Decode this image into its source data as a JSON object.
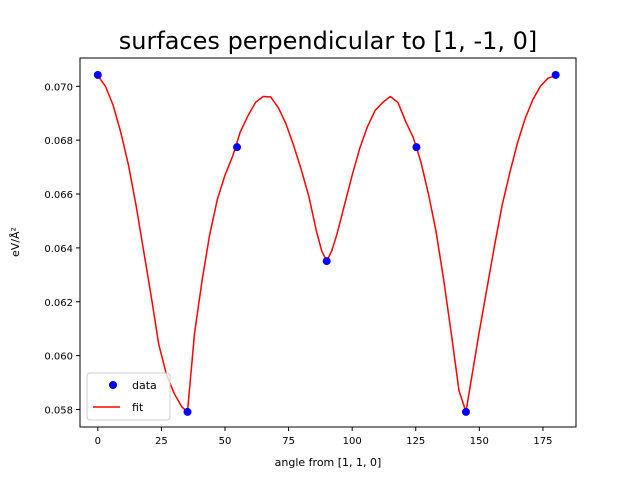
{
  "chart_data": {
    "type": "line",
    "title": "surfaces perpendicular to [1, -1, 0]",
    "xlabel": "angle from [1, 1, 0]",
    "ylabel": "eV/Å²",
    "xlim": [
      -7,
      188
    ],
    "ylim": [
      0.05735,
      0.07105
    ],
    "xticks": [
      0,
      25,
      50,
      75,
      100,
      125,
      150,
      175
    ],
    "xtick_labels": [
      "0",
      "25",
      "50",
      "75",
      "100",
      "125",
      "150",
      "175"
    ],
    "yticks": [
      0.058,
      0.06,
      0.062,
      0.064,
      0.066,
      0.068,
      0.07
    ],
    "ytick_labels": [
      "0.058",
      "0.060",
      "0.062",
      "0.064",
      "0.066",
      "0.068",
      "0.070"
    ],
    "grid": false,
    "legend_position": "lower-left",
    "series": [
      {
        "name": "data",
        "kind": "scatter",
        "color": "#0000ff",
        "x": [
          0,
          35.26,
          54.74,
          90,
          125.26,
          144.74,
          180
        ],
        "y": [
          0.07042,
          0.05791,
          0.06774,
          0.06351,
          0.06774,
          0.05791,
          0.07042
        ]
      },
      {
        "name": "fit",
        "kind": "line",
        "color": "#ff0000",
        "x": [
          0,
          3,
          6,
          9,
          12,
          15,
          18,
          21,
          24,
          27,
          30,
          33,
          35.26,
          38,
          41,
          44,
          47,
          50,
          53,
          56,
          59,
          62,
          65,
          68,
          71,
          74,
          77,
          80,
          83,
          86,
          88,
          90,
          92,
          94,
          97,
          100,
          103,
          106,
          109,
          112,
          115,
          118,
          121,
          124,
          127,
          130,
          133,
          136,
          139,
          142,
          144.74,
          147,
          150,
          153,
          156,
          159,
          162,
          165,
          168,
          171,
          174,
          177,
          180
        ],
        "y": [
          0.0704,
          0.07,
          0.0693,
          0.0683,
          0.0671,
          0.0656,
          0.0639,
          0.0622,
          0.0604,
          0.0593,
          0.0586,
          0.0581,
          0.05791,
          0.0608,
          0.0628,
          0.0645,
          0.0658,
          0.0667,
          0.0674,
          0.0683,
          0.0689,
          0.0694,
          0.06962,
          0.0696,
          0.0692,
          0.0686,
          0.0678,
          0.0669,
          0.0659,
          0.0646,
          0.0639,
          0.0635,
          0.0639,
          0.0645,
          0.0656,
          0.0667,
          0.0677,
          0.0685,
          0.0691,
          0.0694,
          0.06962,
          0.0694,
          0.0687,
          0.0681,
          0.0672,
          0.066,
          0.0646,
          0.0628,
          0.0608,
          0.0587,
          0.05791,
          0.0592,
          0.0609,
          0.0625,
          0.0641,
          0.0656,
          0.0668,
          0.0679,
          0.0688,
          0.0695,
          0.07,
          0.0703,
          0.0704
        ]
      }
    ]
  }
}
